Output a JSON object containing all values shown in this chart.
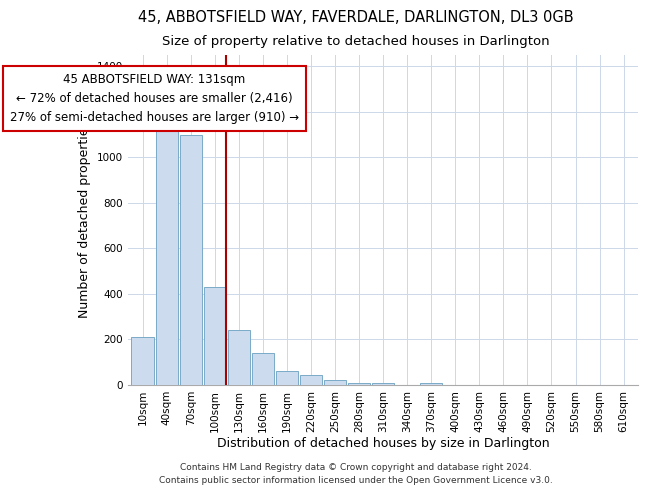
{
  "title": "45, ABBOTSFIELD WAY, FAVERDALE, DARLINGTON, DL3 0GB",
  "subtitle": "Size of property relative to detached houses in Darlington",
  "xlabel": "Distribution of detached houses by size in Darlington",
  "ylabel": "Number of detached properties",
  "bar_labels": [
    "10sqm",
    "40sqm",
    "70sqm",
    "100sqm",
    "130sqm",
    "160sqm",
    "190sqm",
    "220sqm",
    "250sqm",
    "280sqm",
    "310sqm",
    "340sqm",
    "370sqm",
    "400sqm",
    "430sqm",
    "460sqm",
    "490sqm",
    "520sqm",
    "550sqm",
    "580sqm",
    "610sqm"
  ],
  "bar_values": [
    210,
    1120,
    1100,
    430,
    240,
    140,
    60,
    45,
    20,
    10,
    10,
    0,
    10,
    0,
    0,
    0,
    0,
    0,
    0,
    0,
    0
  ],
  "bar_color": "#ccdcee",
  "bar_edge_color": "#7aaac8",
  "annotation_title": "45 ABBOTSFIELD WAY: 131sqm",
  "annotation_line1": "← 72% of detached houses are smaller (2,416)",
  "annotation_line2": "27% of semi-detached houses are larger (910) →",
  "annotation_box_color": "#ffffff",
  "annotation_box_edge": "#cc0000",
  "vline_color": "#aa0000",
  "ylim": [
    0,
    1450
  ],
  "yticks": [
    0,
    200,
    400,
    600,
    800,
    1000,
    1200,
    1400
  ],
  "footer1": "Contains HM Land Registry data © Crown copyright and database right 2024.",
  "footer2": "Contains public sector information licensed under the Open Government Licence v3.0.",
  "bg_color": "#ffffff",
  "grid_color": "#ccd8e8",
  "title_fontsize": 10.5,
  "subtitle_fontsize": 9.5,
  "axis_label_fontsize": 9,
  "tick_fontsize": 7.5,
  "annotation_fontsize": 8.5,
  "footer_fontsize": 6.5
}
